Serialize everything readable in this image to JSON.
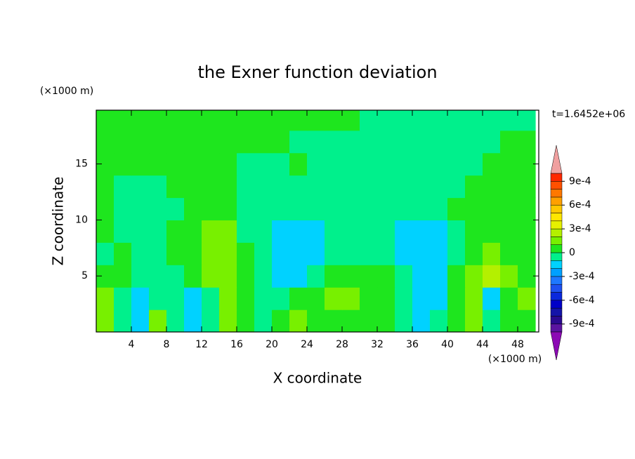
{
  "chart_data": {
    "type": "contour",
    "title": "the Exner function deviation",
    "x_label": "X coordinate",
    "y_label": "Z coordinate",
    "x_unit": "(×1000 m)",
    "y_unit": "(×1000 m)",
    "time_label": "t=1.6452e+06",
    "xlim": [
      0,
      50.4
    ],
    "ylim": [
      0,
      19.8
    ],
    "xticks": [
      4,
      8,
      12,
      16,
      20,
      24,
      28,
      32,
      36,
      40,
      44,
      48
    ],
    "yticks": [
      5,
      10,
      15
    ],
    "x": [
      1,
      3,
      5,
      7,
      9,
      11,
      13,
      15,
      17,
      19,
      21,
      23,
      25,
      27,
      29,
      31,
      33,
      35,
      37,
      39,
      41,
      43,
      45,
      47,
      49
    ],
    "y": [
      1,
      3,
      5,
      7,
      9,
      11,
      13,
      15,
      17,
      19
    ],
    "z": [
      [
        0.00015,
        -5e-05,
        -0.00015,
        0.00015,
        -5e-05,
        -0.00015,
        -5e-05,
        0.00015,
        5e-05,
        -5e-05,
        5e-05,
        0.00015,
        5e-05,
        5e-05,
        5e-05,
        5e-05,
        5e-05,
        -5e-05,
        -0.00015,
        -5e-05,
        5e-05,
        0.00015,
        -5e-05,
        5e-05,
        5e-05
      ],
      [
        0.00015,
        -5e-05,
        -0.00015,
        -5e-05,
        -5e-05,
        -0.00015,
        -5e-05,
        0.00015,
        5e-05,
        -5e-05,
        -5e-05,
        5e-05,
        5e-05,
        0.00015,
        0.00015,
        5e-05,
        5e-05,
        -5e-05,
        -0.00015,
        -0.00015,
        5e-05,
        0.00015,
        -0.00015,
        5e-05,
        0.00015
      ],
      [
        5e-05,
        5e-05,
        -5e-05,
        -5e-05,
        -5e-05,
        5e-05,
        0.00015,
        0.00015,
        5e-05,
        -5e-05,
        -0.00015,
        -0.00015,
        -5e-05,
        5e-05,
        5e-05,
        5e-05,
        5e-05,
        -5e-05,
        -0.00015,
        -0.00015,
        5e-05,
        0.00015,
        0.00025,
        0.00015,
        5e-05
      ],
      [
        -5e-05,
        5e-05,
        -5e-05,
        -5e-05,
        5e-05,
        5e-05,
        0.00015,
        0.00015,
        5e-05,
        -5e-05,
        -0.00015,
        -0.00015,
        -0.00015,
        -5e-05,
        -5e-05,
        -5e-05,
        -5e-05,
        -0.00015,
        -0.00015,
        -0.00015,
        -5e-05,
        5e-05,
        0.00015,
        5e-05,
        5e-05
      ],
      [
        5e-05,
        -5e-05,
        -5e-05,
        -5e-05,
        5e-05,
        5e-05,
        0.00015,
        0.00015,
        -5e-05,
        -5e-05,
        -0.00015,
        -0.00015,
        -0.00015,
        -5e-05,
        -5e-05,
        -5e-05,
        -5e-05,
        -0.00015,
        -0.00015,
        -0.00015,
        -5e-05,
        5e-05,
        5e-05,
        5e-05,
        5e-05
      ],
      [
        5e-05,
        -5e-05,
        -5e-05,
        -5e-05,
        -5e-05,
        5e-05,
        5e-05,
        5e-05,
        -5e-05,
        -5e-05,
        -5e-05,
        -5e-05,
        -5e-05,
        -5e-05,
        -5e-05,
        -5e-05,
        -5e-05,
        -5e-05,
        -5e-05,
        -5e-05,
        5e-05,
        5e-05,
        5e-05,
        5e-05,
        5e-05
      ],
      [
        5e-05,
        -5e-05,
        -5e-05,
        -5e-05,
        5e-05,
        5e-05,
        5e-05,
        5e-05,
        -5e-05,
        -5e-05,
        -5e-05,
        -5e-05,
        -5e-05,
        -5e-05,
        -5e-05,
        -5e-05,
        -5e-05,
        -5e-05,
        -5e-05,
        -5e-05,
        -5e-05,
        5e-05,
        5e-05,
        5e-05,
        5e-05
      ],
      [
        5e-05,
        5e-05,
        5e-05,
        5e-05,
        5e-05,
        5e-05,
        5e-05,
        5e-05,
        -5e-05,
        -5e-05,
        -5e-05,
        5e-05,
        -5e-05,
        -5e-05,
        -5e-05,
        -5e-05,
        -5e-05,
        -5e-05,
        -5e-05,
        -5e-05,
        -5e-05,
        -5e-05,
        5e-05,
        5e-05,
        5e-05
      ],
      [
        5e-05,
        5e-05,
        5e-05,
        5e-05,
        5e-05,
        5e-05,
        5e-05,
        5e-05,
        5e-05,
        5e-05,
        5e-05,
        -5e-05,
        -5e-05,
        -5e-05,
        -5e-05,
        -5e-05,
        -5e-05,
        -5e-05,
        -5e-05,
        -5e-05,
        -5e-05,
        -5e-05,
        -5e-05,
        5e-05,
        5e-05
      ],
      [
        5e-05,
        5e-05,
        5e-05,
        5e-05,
        5e-05,
        5e-05,
        5e-05,
        5e-05,
        5e-05,
        5e-05,
        5e-05,
        5e-05,
        5e-05,
        5e-05,
        5e-05,
        -5e-05,
        -5e-05,
        -5e-05,
        -5e-05,
        -5e-05,
        -5e-05,
        -5e-05,
        -5e-05,
        -5e-05,
        -5e-05
      ]
    ],
    "levels": [
      -0.001,
      -0.0009,
      -0.0008,
      -0.0007,
      -0.0006,
      -0.0005,
      -0.0004,
      -0.0003,
      -0.0002,
      -0.0001,
      0,
      0.0001,
      0.0002,
      0.0003,
      0.0004,
      0.0005,
      0.0006,
      0.0007,
      0.0008,
      0.0009,
      0.001
    ],
    "colors": [
      "#5a14a0",
      "#2a0a90",
      "#1414a8",
      "#0000c8",
      "#0a28dc",
      "#1e50f0",
      "#1e78ff",
      "#00a0ff",
      "#00d2ff",
      "#00f08c",
      "#1ee61e",
      "#78f000",
      "#b4f000",
      "#e6f000",
      "#ffe600",
      "#ffc800",
      "#ffa000",
      "#ff7800",
      "#ff5000",
      "#ff2800"
    ],
    "extend_colors": [
      "#8c0ab4",
      "#f0a0a0"
    ],
    "colorbar_ticks": [
      {
        "value": -0.0009,
        "label": "-9e-4"
      },
      {
        "value": -0.0006,
        "label": "-6e-4"
      },
      {
        "value": -0.0003,
        "label": "-3e-4"
      },
      0,
      {
        "value": 0.0003,
        "label": "3e-4"
      },
      {
        "value": 0.0006,
        "label": "6e-4"
      },
      {
        "value": 0.0009,
        "label": "9e-4"
      }
    ]
  }
}
